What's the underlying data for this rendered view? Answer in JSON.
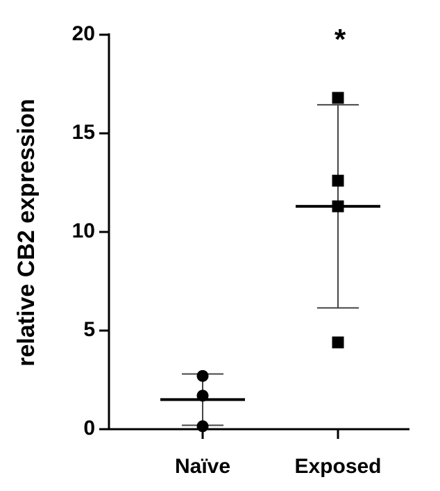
{
  "chart_data": {
    "type": "dotplot",
    "ylabel": "relative CB2 expression",
    "categories": [
      "Naïve",
      "Exposed"
    ],
    "groups": [
      {
        "points": [
          2.7,
          1.7,
          0.15
        ],
        "mean": 1.5,
        "sd": 1.3,
        "marker": "circle"
      },
      {
        "points": [
          16.8,
          12.6,
          11.3,
          4.4
        ],
        "mean": 11.3,
        "sd": 5.15,
        "marker": "square"
      }
    ],
    "color": "#000000",
    "annotations": [
      {
        "text": "*",
        "x": "Exposed"
      }
    ],
    "ylim": [
      0,
      20
    ],
    "yticks": [
      0,
      5,
      10,
      15,
      20
    ]
  }
}
